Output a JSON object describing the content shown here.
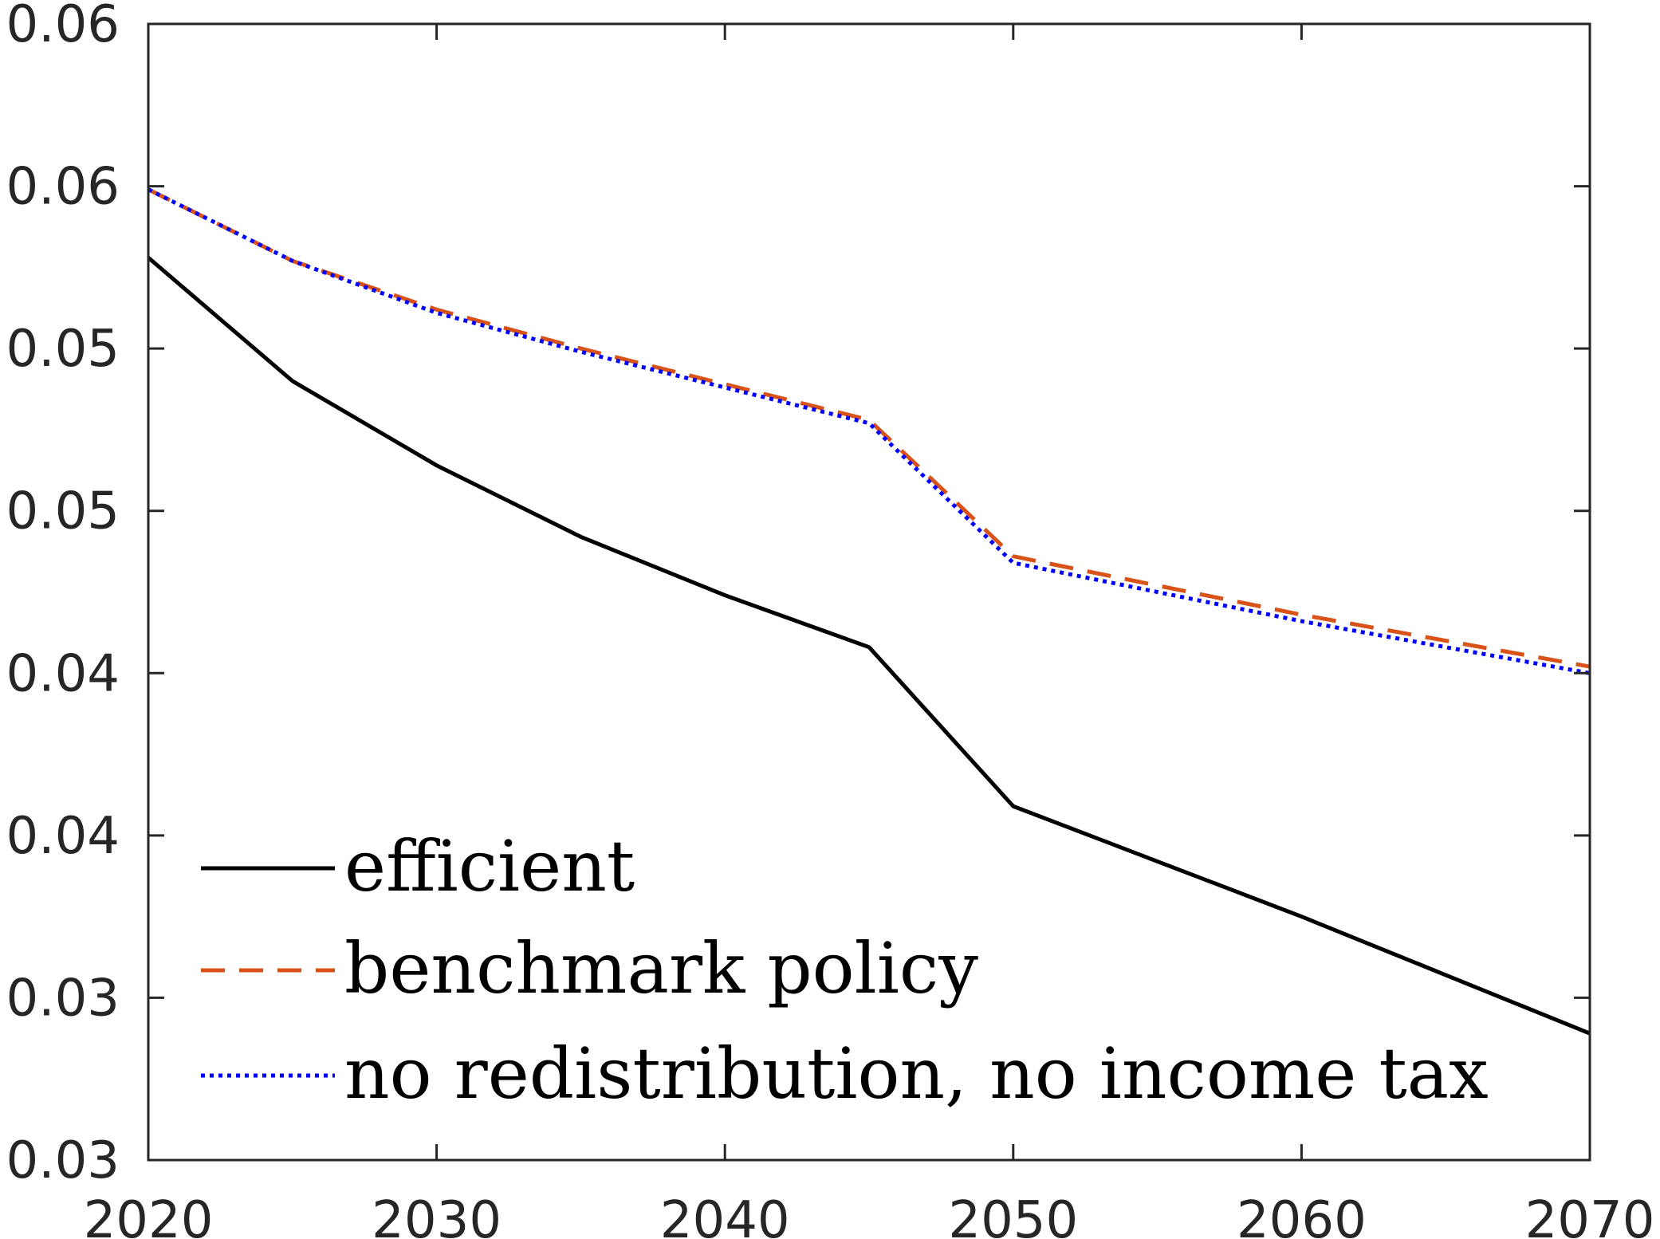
{
  "chart_data": {
    "type": "line",
    "title": "",
    "xlabel": "",
    "ylabel": "",
    "xlim": [
      2020,
      2070
    ],
    "ylim_internal": [
      0.0275,
      0.0625
    ],
    "x_ticks": [
      2020,
      2030,
      2040,
      2050,
      2060,
      2070
    ],
    "y_tick_labels": [
      "0.03",
      "0.03",
      "0.04",
      "0.04",
      "0.05",
      "0.05",
      "0.06",
      "0.06"
    ],
    "grid": false,
    "legend_position": "bottom-left",
    "series": [
      {
        "name": "efficient",
        "color": "#000000",
        "style": "solid",
        "x": [
          2020,
          2025,
          2030,
          2035,
          2040,
          2045,
          2050,
          2055,
          2060,
          2065,
          2070
        ],
        "y": [
          0.0553,
          0.0515,
          0.0489,
          0.0467,
          0.0449,
          0.0433,
          0.0384,
          0.0367,
          0.035,
          0.0332,
          0.0314
        ]
      },
      {
        "name": "benchmark policy",
        "color": "#D95319",
        "style": "dashed",
        "x": [
          2020,
          2025,
          2030,
          2035,
          2040,
          2045,
          2050,
          2055,
          2060,
          2065,
          2070
        ],
        "y": [
          0.0574,
          0.0552,
          0.0537,
          0.0525,
          0.0514,
          0.0503,
          0.0461,
          0.0452,
          0.0443,
          0.0435,
          0.0427
        ]
      },
      {
        "name": "no redistribution, no income tax",
        "color": "#0000FF",
        "style": "dotted",
        "x": [
          2020,
          2025,
          2030,
          2035,
          2040,
          2045,
          2050,
          2055,
          2060,
          2065,
          2070
        ],
        "y": [
          0.0574,
          0.0552,
          0.0536,
          0.0524,
          0.0513,
          0.0502,
          0.0459,
          0.045,
          0.0441,
          0.0433,
          0.0425
        ]
      }
    ]
  }
}
